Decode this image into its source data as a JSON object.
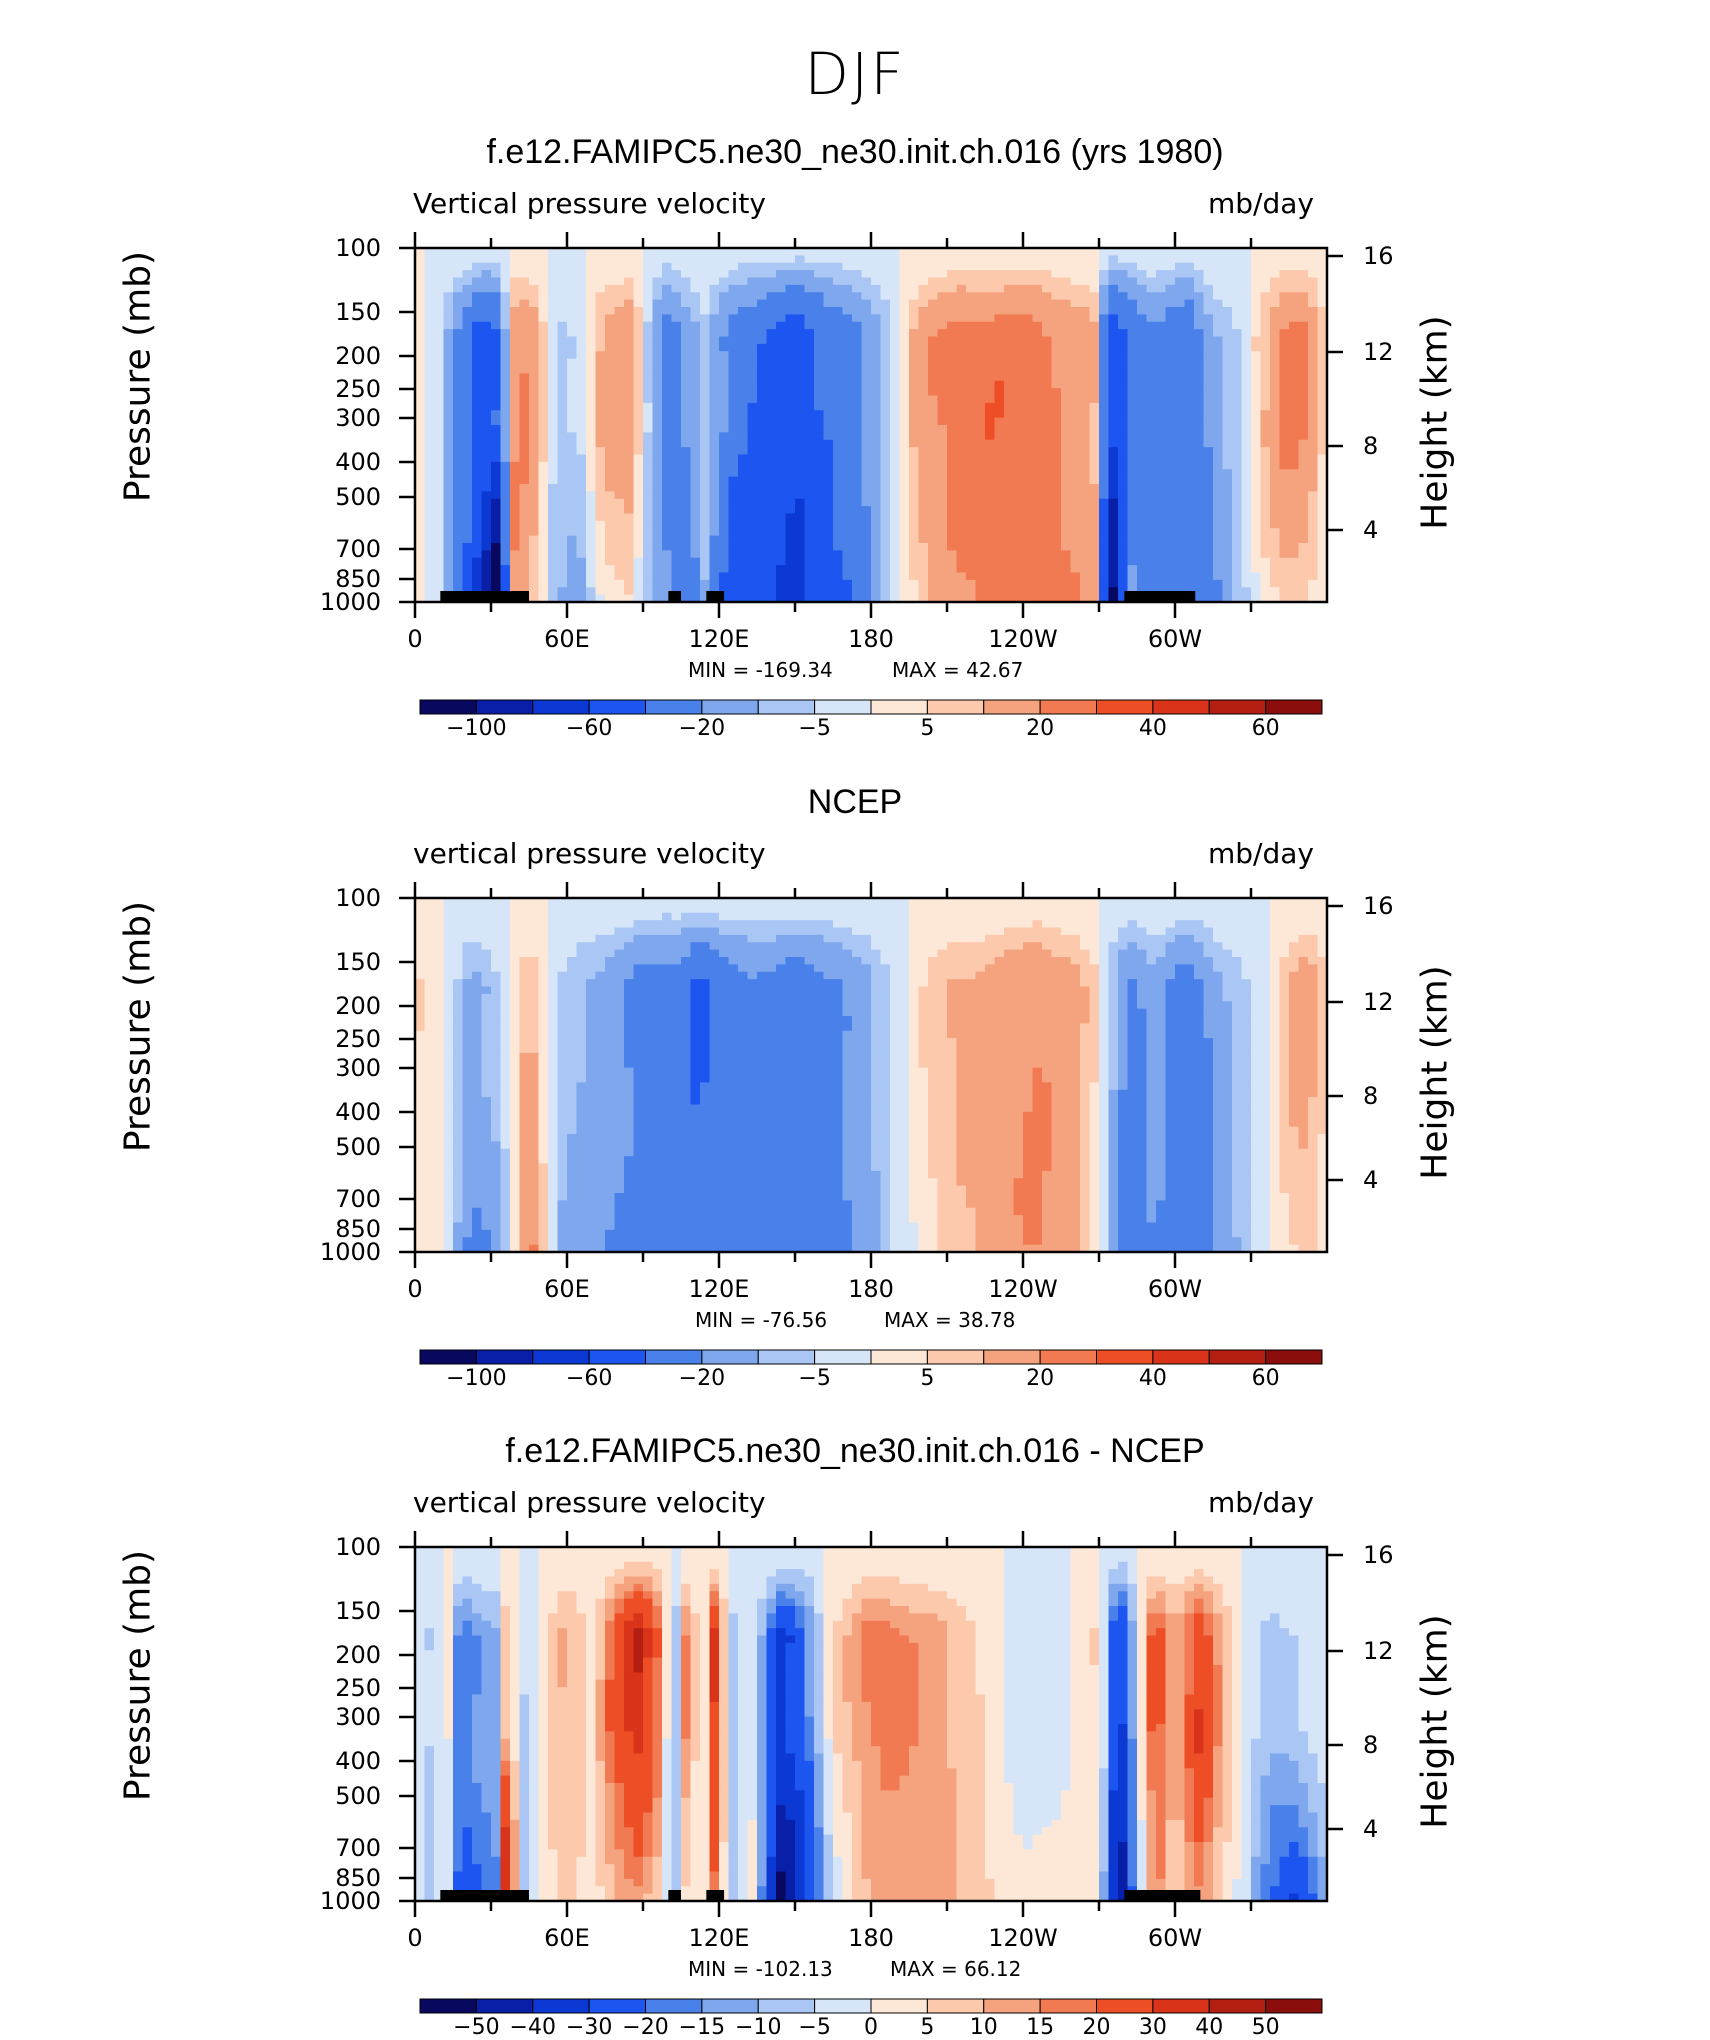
{
  "figure": {
    "title": "DJF"
  },
  "colors": {
    "palette": [
      "#08085f",
      "#0a1fa8",
      "#0c38d3",
      "#1c55ef",
      "#4a80ea",
      "#7ea7ee",
      "#a9c6f4",
      "#d6e6f8",
      "#fde8d8",
      "#fcc9ac",
      "#f5a27e",
      "#f17a52",
      "#ee4e25",
      "#d9331a",
      "#b31f12",
      "#8a0f0c"
    ],
    "land": "#000000"
  },
  "chart_data": [
    {
      "type": "heatmap",
      "id": "model",
      "title": "f.e12.FAMIPC5.ne30_ne30.init.ch.016 (yrs 1980)",
      "subtitle": "Vertical pressure velocity",
      "units": "mb/day",
      "ylabel": "Pressure (mb)",
      "y2label": "Height (km)",
      "x_ticks": [
        "0",
        "60E",
        "120E",
        "180",
        "120W",
        "60W"
      ],
      "y_ticks": [
        "100",
        "150",
        "200",
        "250",
        "300",
        "400",
        "500",
        "700",
        "850",
        "1000"
      ],
      "y2_ticks": [
        "16",
        "12",
        "8",
        "4"
      ],
      "min_label": "MIN = -169.34",
      "max_label": "MAX = 42.67",
      "min": -169.34,
      "max": 42.67,
      "colorbar_labels": [
        "-100",
        "-60",
        "-20",
        "-5",
        "5",
        "20",
        "40",
        "60"
      ],
      "x_range_deg": [
        0,
        360
      ],
      "y_range_mb": [
        100,
        1000
      ],
      "columns": [
        [
          0,
          1,
          1
        ],
        [
          10,
          -2,
          -4
        ],
        [
          18,
          -25,
          -40
        ],
        [
          25,
          -45,
          -70
        ],
        [
          33,
          -40,
          -130
        ],
        [
          38,
          15,
          25
        ],
        [
          45,
          22,
          10
        ],
        [
          55,
          -6,
          -8
        ],
        [
          65,
          -5,
          -12
        ],
        [
          75,
          15,
          2
        ],
        [
          85,
          18,
          4
        ],
        [
          92,
          -6,
          -10
        ],
        [
          100,
          -30,
          -20
        ],
        [
          108,
          -15,
          -35
        ],
        [
          115,
          -6,
          -8
        ],
        [
          125,
          -25,
          -60
        ],
        [
          135,
          -40,
          -50
        ],
        [
          150,
          -55,
          -60
        ],
        [
          165,
          -35,
          -50
        ],
        [
          178,
          -18,
          -25
        ],
        [
          190,
          -2,
          -2
        ],
        [
          200,
          16,
          8
        ],
        [
          215,
          24,
          20
        ],
        [
          230,
          28,
          26
        ],
        [
          245,
          26,
          22
        ],
        [
          258,
          18,
          22
        ],
        [
          268,
          12,
          14
        ],
        [
          275,
          -55,
          -120
        ],
        [
          283,
          -35,
          -20
        ],
        [
          292,
          -20,
          -30
        ],
        [
          305,
          -35,
          -40
        ],
        [
          315,
          -12,
          -25
        ],
        [
          325,
          -5,
          -8
        ],
        [
          335,
          10,
          2
        ],
        [
          345,
          28,
          6
        ],
        [
          352,
          22,
          4
        ],
        [
          360,
          2,
          1
        ]
      ],
      "land": [
        [
          10,
          40
        ],
        [
          30,
          45
        ],
        [
          100,
          105
        ],
        [
          115,
          122
        ],
        [
          280,
          308
        ]
      ]
    },
    {
      "type": "heatmap",
      "id": "ncep",
      "title": "NCEP",
      "subtitle": "vertical pressure velocity",
      "units": "mb/day",
      "ylabel": "Pressure (mb)",
      "y2label": "Height (km)",
      "x_ticks": [
        "0",
        "60E",
        "120E",
        "180",
        "120W",
        "60W"
      ],
      "y_ticks": [
        "100",
        "150",
        "200",
        "250",
        "300",
        "400",
        "500",
        "700",
        "850",
        "1000"
      ],
      "y2_ticks": [
        "16",
        "12",
        "8",
        "4"
      ],
      "min_label": "MIN = -76.56",
      "max_label": "MAX = 38.78",
      "min": -76.56,
      "max": 38.78,
      "colorbar_labels": [
        "-100",
        "-60",
        "-20",
        "-5",
        "5",
        "20",
        "40",
        "60"
      ],
      "x_range_deg": [
        0,
        360
      ],
      "y_range_mb": [
        100,
        1000
      ],
      "columns": [
        [
          0,
          6,
          3
        ],
        [
          8,
          3,
          2
        ],
        [
          15,
          -3,
          -8
        ],
        [
          22,
          -12,
          -25
        ],
        [
          30,
          -8,
          -20
        ],
        [
          38,
          2,
          -5
        ],
        [
          45,
          12,
          28
        ],
        [
          52,
          1,
          2
        ],
        [
          58,
          -6,
          -10
        ],
        [
          65,
          -10,
          -15
        ],
        [
          75,
          -15,
          -20
        ],
        [
          90,
          -25,
          -25
        ],
        [
          105,
          -30,
          -28
        ],
        [
          112,
          -45,
          -30
        ],
        [
          120,
          -28,
          -25
        ],
        [
          135,
          -25,
          -28
        ],
        [
          150,
          -30,
          -32
        ],
        [
          165,
          -25,
          -26
        ],
        [
          180,
          -10,
          -12
        ],
        [
          192,
          -2,
          -3
        ],
        [
          205,
          8,
          4
        ],
        [
          225,
          14,
          12
        ],
        [
          245,
          22,
          20
        ],
        [
          258,
          16,
          14
        ],
        [
          270,
          4,
          2
        ],
        [
          282,
          -25,
          -40
        ],
        [
          292,
          -12,
          -20
        ],
        [
          305,
          -30,
          -35
        ],
        [
          320,
          -10,
          -12
        ],
        [
          335,
          -2,
          -2
        ],
        [
          345,
          12,
          4
        ],
        [
          352,
          16,
          6
        ],
        [
          360,
          4,
          2
        ]
      ],
      "land": []
    },
    {
      "type": "heatmap",
      "id": "diff",
      "title": "f.e12.FAMIPC5.ne30_ne30.init.ch.016 - NCEP",
      "subtitle": "vertical pressure velocity",
      "units": "mb/day",
      "ylabel": "Pressure (mb)",
      "y2label": "Height (km)",
      "x_ticks": [
        "0",
        "60E",
        "120E",
        "180",
        "120W",
        "60W"
      ],
      "y_ticks": [
        "100",
        "150",
        "200",
        "250",
        "300",
        "400",
        "500",
        "700",
        "850",
        "1000"
      ],
      "y2_ticks": [
        "16",
        "12",
        "8",
        "4"
      ],
      "min_label": "MIN = -102.13",
      "max_label": "MAX = 66.12",
      "min": -102.13,
      "max": 66.12,
      "colorbar_labels": [
        "-50",
        "-40",
        "-30",
        "-20",
        "-15",
        "-10",
        "-5",
        "0",
        "5",
        "10",
        "15",
        "20",
        "30",
        "40",
        "50"
      ],
      "x_range_deg": [
        0,
        360
      ],
      "y_range_mb": [
        100,
        1000
      ],
      "columns": [
        [
          0,
          -3,
          -2
        ],
        [
          8,
          -6,
          -8
        ],
        [
          12,
          5,
          3
        ],
        [
          18,
          -20,
          -30
        ],
        [
          26,
          -12,
          -20
        ],
        [
          33,
          -10,
          -15
        ],
        [
          36,
          10,
          50
        ],
        [
          42,
          -6,
          -10
        ],
        [
          50,
          3,
          2
        ],
        [
          60,
          12,
          6
        ],
        [
          70,
          3,
          2
        ],
        [
          80,
          28,
          10
        ],
        [
          88,
          40,
          12
        ],
        [
          96,
          20,
          6
        ],
        [
          102,
          -15,
          -10
        ],
        [
          108,
          22,
          8
        ],
        [
          113,
          -8,
          -5
        ],
        [
          118,
          30,
          18
        ],
        [
          125,
          -8,
          -10
        ],
        [
          132,
          3,
          5
        ],
        [
          145,
          -35,
          -50
        ],
        [
          155,
          -18,
          -30
        ],
        [
          165,
          5,
          -4
        ],
        [
          180,
          18,
          10
        ],
        [
          195,
          15,
          14
        ],
        [
          210,
          10,
          12
        ],
        [
          225,
          4,
          6
        ],
        [
          240,
          -5,
          2
        ],
        [
          255,
          -3,
          3
        ],
        [
          270,
          6,
          4
        ],
        [
          278,
          -35,
          -60
        ],
        [
          285,
          -5,
          -10
        ],
        [
          292,
          25,
          18
        ],
        [
          300,
          8,
          5
        ],
        [
          310,
          30,
          16
        ],
        [
          318,
          12,
          6
        ],
        [
          328,
          -3,
          -4
        ],
        [
          338,
          -8,
          -20
        ],
        [
          348,
          -5,
          -30
        ],
        [
          360,
          -2,
          -8
        ]
      ],
      "land": [
        [
          10,
          40
        ],
        [
          28,
          45
        ],
        [
          100,
          105
        ],
        [
          115,
          122
        ],
        [
          280,
          310
        ]
      ]
    }
  ]
}
